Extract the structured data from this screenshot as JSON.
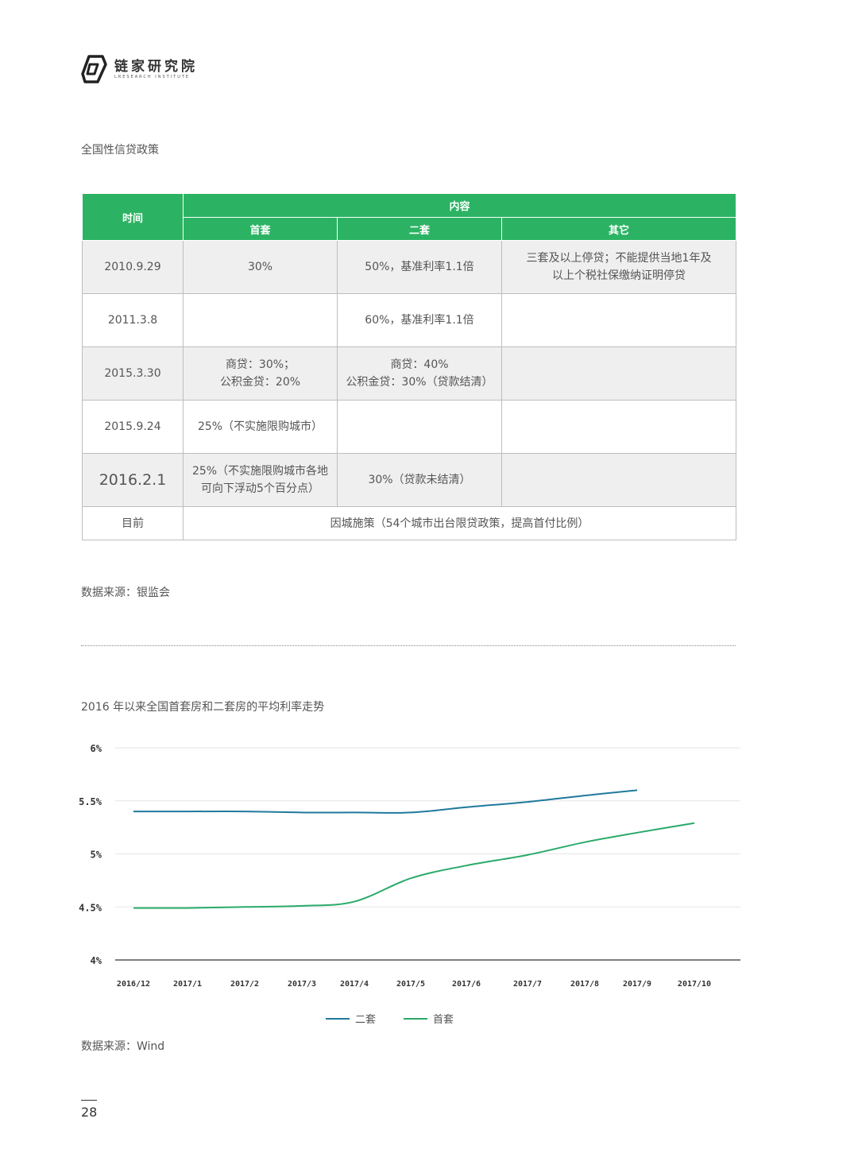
{
  "brand": {
    "name_cn": "链家研究院",
    "name_en": "LRESEARCH INSTITUTE",
    "color": "#2bb363"
  },
  "table_section": {
    "title": "全国性信贷政策",
    "headers": {
      "time": "时间",
      "content": "内容",
      "first": "首套",
      "second": "二套",
      "other": "其它"
    },
    "rows": [
      {
        "time": "2010.9.29",
        "first": "30%",
        "second": "50%，基准利率1.1倍",
        "other": [
          "三套及以上停贷；不能提供当地1年及",
          "以上个税社保缴纳证明停贷"
        ]
      },
      {
        "time": "2011.3.8",
        "first": "",
        "second": "60%，基准利率1.1倍",
        "other": []
      },
      {
        "time": "2015.3.30",
        "first": [
          "商贷：30%；",
          "公积金贷：20%"
        ],
        "second": [
          "商贷：40%",
          "公积金贷：30%（贷款结清）"
        ],
        "other": []
      },
      {
        "time": "2015.9.24",
        "first": "25%（不实施限购城市）",
        "second": "",
        "other": []
      },
      {
        "time": "2016.2.1",
        "first": [
          "25%（不实施限购城市各地",
          "可向下浮动5个百分点）"
        ],
        "second": "30%（贷款未结清）",
        "other": []
      }
    ],
    "current": {
      "time": "目前",
      "content": "因城施策（54个城市出台限贷政策，提高首付比例）"
    },
    "source": "数据来源：银监会"
  },
  "chart_section": {
    "title": "2016 年以来全国首套房和二套房的平均利率走势",
    "source": "数据来源：Wind"
  },
  "chart_data": {
    "type": "line",
    "title": "2016 年以来全国首套房和二套房的平均利率走势",
    "categories": [
      "2016/12",
      "2017/1",
      "2017/2",
      "2017/3",
      "2017/4",
      "2017/5",
      "2017/6",
      "2017/7",
      "2017/8",
      "2017/9",
      "2017/10"
    ],
    "ytick_labels": [
      "6%",
      "5.5%",
      "5%",
      "4.5%",
      "4%"
    ],
    "ylim": [
      4,
      6
    ],
    "grid": true,
    "legend": "bottom-center",
    "series": [
      {
        "name": "二套",
        "color": "#1f7a9c",
        "values": [
          5.4,
          5.4,
          5.4,
          5.39,
          5.39,
          5.39,
          5.44,
          5.49,
          5.55,
          5.6,
          null
        ]
      },
      {
        "name": "首套",
        "color": "#2aaa6a",
        "values": [
          4.49,
          4.49,
          4.5,
          4.51,
          4.55,
          4.77,
          4.89,
          4.99,
          5.11,
          5.2,
          5.29
        ]
      }
    ]
  },
  "page_number": "28"
}
